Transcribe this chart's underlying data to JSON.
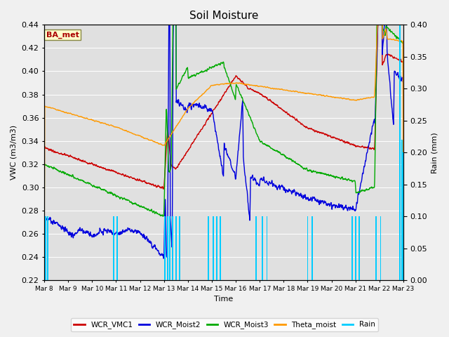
{
  "title": "Soil Moisture",
  "xlabel": "Time",
  "ylabel_left": "VWC (m3/m3)",
  "ylabel_right": "Rain (mm)",
  "ylim_left": [
    0.22,
    0.44
  ],
  "ylim_right": [
    0.0,
    0.4
  ],
  "bg_color": "#f0f0f0",
  "plot_bg_color": "#e0e0e0",
  "annotation_text": "BA_met",
  "annotation_color": "#aa0000",
  "annotation_bg": "#ffffcc",
  "annotation_border": "#888844",
  "x_ticks": [
    "Mar 8",
    "Mar 9",
    "Mar 10",
    "Mar 11",
    "Mar 12",
    "Mar 13",
    "Mar 14",
    "Mar 15",
    "Mar 16",
    "Mar 17",
    "Mar 18",
    "Mar 19",
    "Mar 20",
    "Mar 21",
    "Mar 22",
    "Mar 23"
  ],
  "colors": {
    "WCR_VMC1": "#cc0000",
    "WCR_Moist2": "#0000dd",
    "WCR_Moist3": "#00aa00",
    "Theta_moist": "#ff9900",
    "Rain": "#00ccff"
  },
  "line_width": 1.0
}
